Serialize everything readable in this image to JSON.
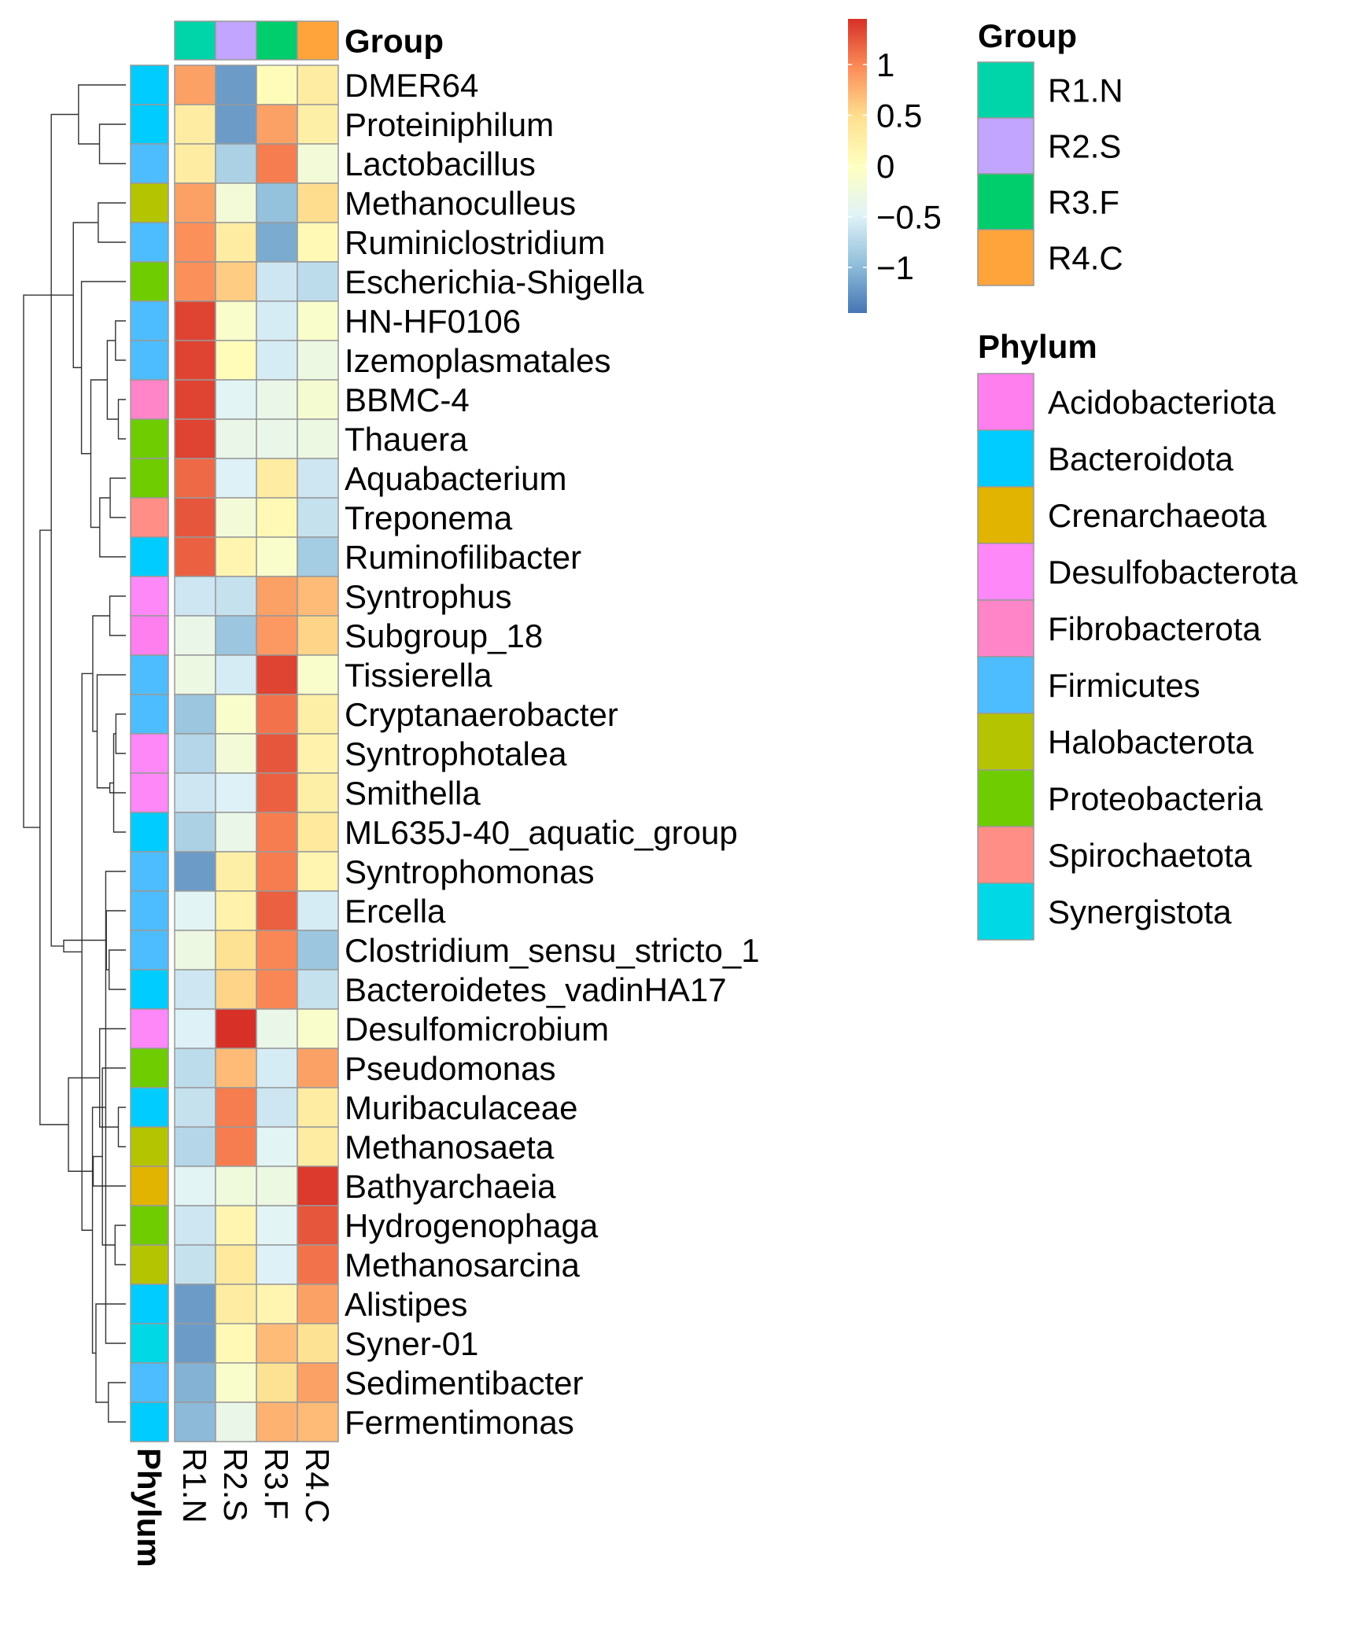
{
  "chart_data": {
    "type": "heatmap",
    "columns": [
      "R1.N",
      "R2.S",
      "R3.F",
      "R4.C"
    ],
    "column_annotation_title": "Group",
    "column_group_colors": [
      "#00D4A9",
      "#C2A5FF",
      "#00CD6C",
      "#FFA43A"
    ],
    "row_annotation_title": "Phylum",
    "rows": [
      {
        "name": "DMER64",
        "phylum": "Bacteroidota",
        "values": [
          0.85,
          -1.2,
          0.05,
          0.3
        ]
      },
      {
        "name": "Proteiniphilum",
        "phylum": "Bacteroidota",
        "values": [
          0.3,
          -1.2,
          0.85,
          0.25
        ]
      },
      {
        "name": "Lactobacillus",
        "phylum": "Firmicutes",
        "values": [
          0.3,
          -0.8,
          1.05,
          -0.2
        ]
      },
      {
        "name": "Methanoculleus",
        "phylum": "Halobacterota",
        "values": [
          0.85,
          -0.2,
          -0.95,
          0.5
        ]
      },
      {
        "name": "Ruminiclostridium",
        "phylum": "Firmicutes",
        "values": [
          0.95,
          0.3,
          -1.1,
          0.1
        ]
      },
      {
        "name": "Escherichia-Shigella",
        "phylum": "Proteobacteria",
        "values": [
          0.95,
          0.6,
          -0.6,
          -0.7
        ]
      },
      {
        "name": "HN-HF0106",
        "phylum": "Firmicutes",
        "values": [
          1.35,
          -0.1,
          -0.55,
          -0.1
        ]
      },
      {
        "name": "Izemoplasmatales",
        "phylum": "Firmicutes",
        "values": [
          1.35,
          0.05,
          -0.55,
          -0.3
        ]
      },
      {
        "name": "BBMC-4",
        "phylum": "Fibrobacterota",
        "values": [
          1.35,
          -0.45,
          -0.35,
          -0.15
        ]
      },
      {
        "name": "Thauera",
        "phylum": "Proteobacteria",
        "values": [
          1.35,
          -0.35,
          -0.35,
          -0.3
        ]
      },
      {
        "name": "Aquabacterium",
        "phylum": "Proteobacteria",
        "values": [
          1.15,
          -0.5,
          0.3,
          -0.6
        ]
      },
      {
        "name": "Treponema",
        "phylum": "Spirochaetota",
        "values": [
          1.25,
          -0.2,
          0.1,
          -0.65
        ]
      },
      {
        "name": "Ruminofilibacter",
        "phylum": "Bacteroidota",
        "values": [
          1.2,
          0.15,
          -0.1,
          -0.85
        ]
      },
      {
        "name": "Syntrophus",
        "phylum": "Desulfobacterota",
        "values": [
          -0.6,
          -0.65,
          0.85,
          0.7
        ]
      },
      {
        "name": "Subgroup_18",
        "phylum": "Acidobacteriota",
        "values": [
          -0.35,
          -0.9,
          0.9,
          0.55
        ]
      },
      {
        "name": "Tissierella",
        "phylum": "Firmicutes",
        "values": [
          -0.3,
          -0.55,
          1.35,
          -0.1
        ]
      },
      {
        "name": "Cryptanaerobacter",
        "phylum": "Firmicutes",
        "values": [
          -0.9,
          -0.1,
          1.1,
          0.25
        ]
      },
      {
        "name": "Syntrophotalea",
        "phylum": "Desulfobacterota",
        "values": [
          -0.75,
          -0.2,
          1.25,
          0.2
        ]
      },
      {
        "name": "Smithella",
        "phylum": "Desulfobacterota",
        "values": [
          -0.6,
          -0.5,
          1.2,
          0.25
        ]
      },
      {
        "name": "ML635J-40_aquatic_group",
        "phylum": "Bacteroidota",
        "values": [
          -0.8,
          -0.35,
          1.05,
          0.35
        ]
      },
      {
        "name": "Syntrophomonas",
        "phylum": "Firmicutes",
        "values": [
          -1.2,
          0.25,
          1.05,
          0.15
        ]
      },
      {
        "name": "Ercella",
        "phylum": "Firmicutes",
        "values": [
          -0.45,
          0.2,
          1.2,
          -0.55
        ]
      },
      {
        "name": "Clostridium_sensu_stricto_1",
        "phylum": "Firmicutes",
        "values": [
          -0.3,
          0.45,
          1.0,
          -0.9
        ]
      },
      {
        "name": "Bacteroidetes_vadinHA17",
        "phylum": "Bacteroidota",
        "values": [
          -0.6,
          0.55,
          1.0,
          -0.65
        ]
      },
      {
        "name": "Desulfomicrobium",
        "phylum": "Desulfobacterota",
        "values": [
          -0.5,
          1.45,
          -0.35,
          -0.1
        ]
      },
      {
        "name": "Pseudomonas",
        "phylum": "Proteobacteria",
        "values": [
          -0.7,
          0.7,
          -0.55,
          0.85
        ]
      },
      {
        "name": "Muribaculaceae",
        "phylum": "Bacteroidota",
        "values": [
          -0.65,
          1.05,
          -0.6,
          0.3
        ]
      },
      {
        "name": "Methanosaeta",
        "phylum": "Halobacterota",
        "values": [
          -0.75,
          1.05,
          -0.45,
          0.3
        ]
      },
      {
        "name": "Bathyarchaeia",
        "phylum": "Crenarchaeota",
        "values": [
          -0.45,
          -0.25,
          -0.3,
          1.4
        ]
      },
      {
        "name": "Hydrogenophaga",
        "phylum": "Proteobacteria",
        "values": [
          -0.6,
          0.15,
          -0.45,
          1.25
        ]
      },
      {
        "name": "Methanosarcina",
        "phylum": "Halobacterota",
        "values": [
          -0.65,
          0.35,
          -0.5,
          1.1
        ]
      },
      {
        "name": "Alistipes",
        "phylum": "Bacteroidota",
        "values": [
          -1.2,
          0.3,
          0.15,
          0.85
        ]
      },
      {
        "name": "Syner-01",
        "phylum": "Synergistota",
        "values": [
          -1.2,
          0.1,
          0.7,
          0.45
        ]
      },
      {
        "name": "Sedimentibacter",
        "phylum": "Firmicutes",
        "values": [
          -1.05,
          -0.1,
          0.45,
          0.85
        ]
      },
      {
        "name": "Fermentimonas",
        "phylum": "Bacteroidota",
        "values": [
          -1.0,
          -0.35,
          0.75,
          0.7
        ]
      }
    ],
    "phylum_colors": {
      "Acidobacteriota": "#FF7FEF",
      "Bacteroidota": "#00CCFF",
      "Crenarchaeota": "#E0B400",
      "Desulfobacterota": "#FF88F8",
      "Fibrobacterota": "#FF85C8",
      "Firmicutes": "#4DBDFF",
      "Halobacterota": "#B5C400",
      "Proteobacteria": "#6ECC00",
      "Spirochaetota": "#FF8E86",
      "Synergistota": "#00D8E6"
    },
    "color_scale": {
      "min": -1.45,
      "max": 1.45,
      "stops": [
        "#4575B4",
        "#91BFDB",
        "#E0F3F8",
        "#FFFFBF",
        "#FEE090",
        "#FC8D59",
        "#D73027"
      ],
      "ticks": [
        1,
        0.5,
        0,
        -0.5,
        -1
      ],
      "tick_labels": [
        "1",
        "0.5",
        "0",
        "−0.5",
        "−1"
      ]
    },
    "legend_group": {
      "title": "Group",
      "items": [
        "R1.N",
        "R2.S",
        "R3.F",
        "R4.C"
      ]
    },
    "legend_phylum": {
      "title": "Phylum",
      "items": [
        "Acidobacteriota",
        "Bacteroidota",
        "Crenarchaeota",
        "Desulfobacterota",
        "Fibrobacterota",
        "Firmicutes",
        "Halobacterota",
        "Proteobacteria",
        "Spirochaetota",
        "Synergistota"
      ]
    },
    "dendrogram_merge_order": [
      [
        "DMER64",
        "Proteiniphilum"
      ],
      [
        "Methanoculleus",
        "Ruminiclostridium"
      ],
      [
        "HN-HF0106",
        "Izemoplasmatales"
      ],
      [
        "BBMC-4",
        "Thauera"
      ],
      [
        "Treponema",
        "Ruminofilibacter"
      ],
      [
        "Syntrophus",
        "Subgroup_18"
      ],
      [
        "Syntrophotalea",
        "Smithella"
      ],
      [
        "Clostridium_sensu_stricto_1",
        "Bacteroidetes_vadinHA17"
      ],
      [
        "Muribaculaceae",
        "Methanosaeta"
      ],
      [
        "Hydrogenophaga",
        "Methanosarcina"
      ],
      [
        "Sedimentibacter",
        "Fermentimonas"
      ]
    ]
  }
}
